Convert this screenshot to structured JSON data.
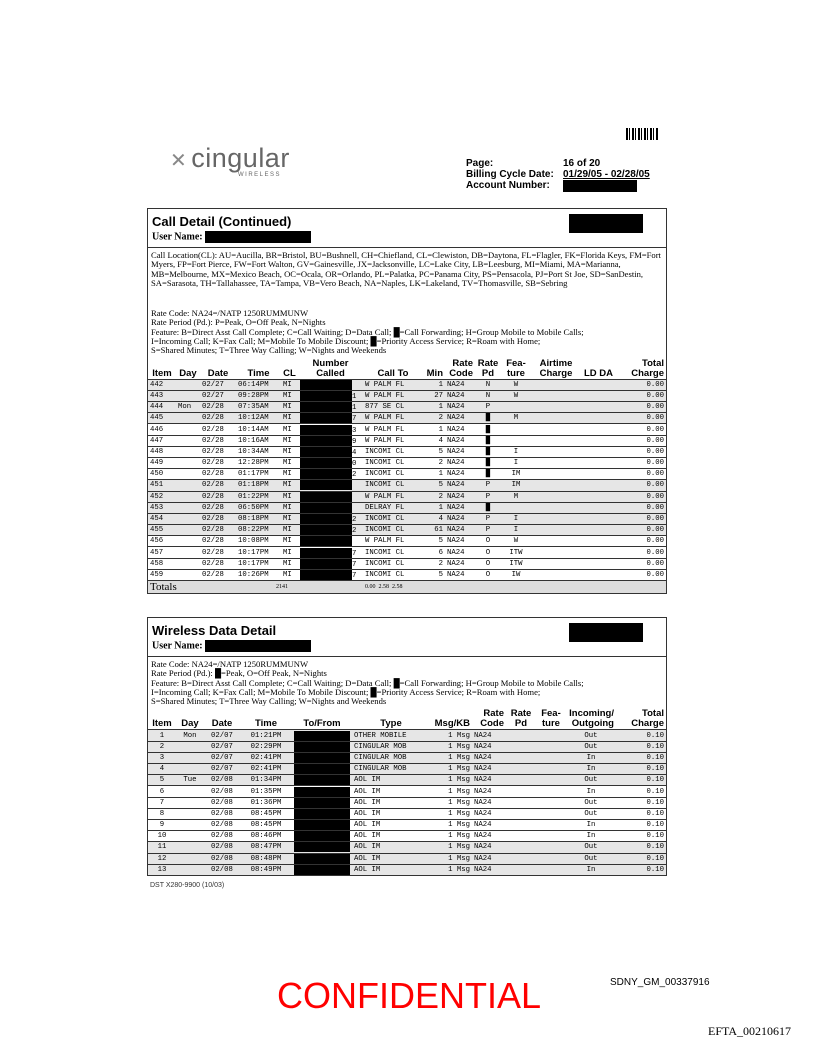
{
  "header": {
    "logo": "cingular",
    "logo_sub": "WIRELESS",
    "page_label": "Page:",
    "page_value": "16 of 20",
    "billing_label": "Billing Cycle Date:",
    "billing_value": "01/29/05 - 02/28/05",
    "account_label": "Account Number:"
  },
  "call_detail": {
    "title": "Call Detail (Continued)",
    "user_label": "User Name:",
    "location_legend": "Call Location(CL): AU=Aucilla, BR=Bristol, BU=Bushnell, CH=Chiefland, CL=Clewiston, DB=Daytona, FL=Flagler, FK=Florida Keys, FM=Fort Myers, FP=Fort Pierce, FW=Fort Walton, GV=Gainesville, JX=Jacksonville, LC=Lake City, LB=Leesburg, MI=Miami, MA=Marianna, MB=Melbourne, MX=Mexico Beach, OC=Ocala, OR=Orlando, PL=Palatka, PC=Panama City, PS=Pensacola, PJ=Port St Joe, SD=SanDestin, SA=Sarasota, TH=Tallahassee, TA=Tampa, VB=Vero Beach, NA=Naples, LK=Lakeland, TV=Thomasville, SB=Sebring",
    "rate_code": "Rate Code: NA24=/NATP 1250RUMMUNW",
    "rate_period": "Rate Period (Pd.): P=Peak, O=Off Peak, N=Nights",
    "feature1": "Feature: B=Direct Asst Call Complete; C=Call Waiting; D=Data Call; █=Call Forwarding; H=Group Mobile to Mobile Calls;",
    "feature2": "I=Incoming Call; K=Fax Call; M=Mobile To Mobile Discount; █=Priority Access Service; R=Roam with Home;",
    "feature3": "S=Shared Minutes;  T=Three Way Calling; W=Nights and Weekends",
    "columns": [
      "Item",
      "Day",
      "Date",
      "Time",
      "CL",
      "Number Called",
      "Call To",
      "Min",
      "Rate Code",
      "Rate Pd",
      "Fea- ture",
      "Airtime Charge",
      "LD DA",
      "Total Charge"
    ],
    "rows": [
      {
        "item": "442",
        "day": "",
        "date": "02/27",
        "time": "06:14PM",
        "cl": "MI",
        "num": "",
        "to": "W PALM FL",
        "min": "1",
        "code": "NA24",
        "pd": "N",
        "feat": "W",
        "total": "0.00",
        "shade": true
      },
      {
        "item": "443",
        "day": "",
        "date": "02/27",
        "time": "09:28PM",
        "cl": "MI",
        "num": "1",
        "to": "W PALM FL",
        "min": "27",
        "code": "NA24",
        "pd": "N",
        "feat": "W",
        "total": "0.00",
        "shade": true
      },
      {
        "item": "444",
        "day": "Mon",
        "date": "02/28",
        "time": "07:35AM",
        "cl": "MI",
        "num": "1",
        "to": "877 SE CL",
        "min": "1",
        "code": "NA24",
        "pd": "P",
        "feat": "",
        "total": "0.00",
        "shade": true
      },
      {
        "item": "445",
        "day": "",
        "date": "02/28",
        "time": "10:12AM",
        "cl": "MI",
        "num": "7",
        "to": "W PALM FL",
        "min": "2",
        "code": "NA24",
        "pd": "█",
        "feat": "M",
        "total": "0.00",
        "shade": true
      },
      {
        "item": "446",
        "day": "",
        "date": "02/28",
        "time": "10:14AM",
        "cl": "MI",
        "num": "3",
        "to": "W PALM FL",
        "min": "1",
        "code": "NA24",
        "pd": "█",
        "feat": "",
        "total": "0.00",
        "shade": false
      },
      {
        "item": "447",
        "day": "",
        "date": "02/28",
        "time": "10:16AM",
        "cl": "MI",
        "num": "9",
        "to": "W PALM FL",
        "min": "4",
        "code": "NA24",
        "pd": "█",
        "feat": "",
        "total": "0.00",
        "shade": false
      },
      {
        "item": "448",
        "day": "",
        "date": "02/28",
        "time": "10:34AM",
        "cl": "MI",
        "num": "4",
        "to": "INCOMI CL",
        "min": "5",
        "code": "NA24",
        "pd": "█",
        "feat": "I",
        "total": "0.00",
        "shade": false
      },
      {
        "item": "449",
        "day": "",
        "date": "02/28",
        "time": "12:28PM",
        "cl": "MI",
        "num": "0",
        "to": "INCOMI CL",
        "min": "2",
        "code": "NA24",
        "pd": "█",
        "feat": "I",
        "total": "0.00",
        "shade": false
      },
      {
        "item": "450",
        "day": "",
        "date": "02/28",
        "time": "01:17PM",
        "cl": "MI",
        "num": "2",
        "to": "INCOMI CL",
        "min": "1",
        "code": "NA24",
        "pd": "█",
        "feat": "IM",
        "total": "0.00",
        "shade": false
      },
      {
        "item": "451",
        "day": "",
        "date": "02/28",
        "time": "01:18PM",
        "cl": "MI",
        "num": "",
        "to": "INCOMI CL",
        "min": "5",
        "code": "NA24",
        "pd": "P",
        "feat": "IM",
        "total": "0.00",
        "shade": true
      },
      {
        "item": "452",
        "day": "",
        "date": "02/28",
        "time": "01:22PM",
        "cl": "MI",
        "num": "",
        "to": "W PALM FL",
        "min": "2",
        "code": "NA24",
        "pd": "P",
        "feat": "M",
        "total": "0.00",
        "shade": true
      },
      {
        "item": "453",
        "day": "",
        "date": "02/28",
        "time": "06:50PM",
        "cl": "MI",
        "num": "",
        "to": "DELRAY FL",
        "min": "1",
        "code": "NA24",
        "pd": "█",
        "feat": "",
        "total": "0.00",
        "shade": true
      },
      {
        "item": "454",
        "day": "",
        "date": "02/28",
        "time": "08:18PM",
        "cl": "MI",
        "num": "2",
        "to": "INCOMI CL",
        "min": "4",
        "code": "NA24",
        "pd": "P",
        "feat": "I",
        "total": "0.00",
        "shade": true
      },
      {
        "item": "455",
        "day": "",
        "date": "02/28",
        "time": "08:22PM",
        "cl": "MI",
        "num": "2",
        "to": "INCOMI CL",
        "min": "61",
        "code": "NA24",
        "pd": "P",
        "feat": "I",
        "total": "0.00",
        "shade": true
      },
      {
        "item": "456",
        "day": "",
        "date": "02/28",
        "time": "10:08PM",
        "cl": "MI",
        "num": "",
        "to": "W PALM FL",
        "min": "5",
        "code": "NA24",
        "pd": "O",
        "feat": "W",
        "total": "0.00",
        "shade": false
      },
      {
        "item": "457",
        "day": "",
        "date": "02/28",
        "time": "10:17PM",
        "cl": "MI",
        "num": "7",
        "to": "INCOMI CL",
        "min": "6",
        "code": "NA24",
        "pd": "O",
        "feat": "ITW",
        "total": "0.00",
        "shade": false
      },
      {
        "item": "458",
        "day": "",
        "date": "02/28",
        "time": "10:17PM",
        "cl": "MI",
        "num": "7",
        "to": "INCOMI CL",
        "min": "2",
        "code": "NA24",
        "pd": "O",
        "feat": "ITW",
        "total": "0.00",
        "shade": false
      },
      {
        "item": "459",
        "day": "",
        "date": "02/28",
        "time": "10:26PM",
        "cl": "MI",
        "num": "7",
        "to": "INCOMI CL",
        "min": "5",
        "code": "NA24",
        "pd": "O",
        "feat": "IW",
        "total": "0.00",
        "shade": false
      }
    ],
    "totals": {
      "label": "Totals",
      "min": "2141",
      "values": "0.00  2.58  2.58"
    }
  },
  "data_detail": {
    "title": "Wireless Data Detail",
    "user_label": "User Name:",
    "rate_code": "Rate Code: NA24=/NATP 1250RUMMUNW",
    "rate_period": "Rate Period (Pd.): █=Peak, O=Off Peak, N=Nights",
    "feature1": "Feature: B=Direct Asst Call Complete; C=Call Waiting; D=Data Call; █=Call Forwarding; H=Group Mobile to Mobile Calls;",
    "feature2": "I=Incoming Call; K=Fax Call; M=Mobile To Mobile Discount; █=Priority Access Service; R=Roam with Home;",
    "feature3": "S=Shared Minutes;  T=Three Way Calling; W=Nights and Weekends",
    "columns": [
      "Item",
      "Day",
      "Date",
      "Time",
      "To/From",
      "Type",
      "Msg/KB",
      "Rate Code",
      "Rate Pd",
      "Fea- ture",
      "Incoming/ Outgoing",
      "Total Charge"
    ],
    "rows": [
      {
        "item": "1",
        "day": "Mon",
        "date": "02/07",
        "time": "01:21PM",
        "type": "OTHER MOBILE",
        "msg": "1 Msg",
        "code": "NA24",
        "io": "Out",
        "total": "0.10",
        "shade": true
      },
      {
        "item": "2",
        "day": "",
        "date": "02/07",
        "time": "02:29PM",
        "type": "CINGULAR MOB",
        "msg": "1 Msg",
        "code": "NA24",
        "io": "Out",
        "total": "0.10",
        "shade": true
      },
      {
        "item": "3",
        "day": "",
        "date": "02/07",
        "time": "02:41PM",
        "type": "CINGULAR MOB",
        "msg": "1 Msg",
        "code": "NA24",
        "io": "In",
        "total": "0.10",
        "shade": true
      },
      {
        "item": "4",
        "day": "",
        "date": "02/07",
        "time": "02:41PM",
        "type": "CINGULAR MOB",
        "msg": "1 Msg",
        "code": "NA24",
        "io": "In",
        "total": "0.10",
        "shade": true
      },
      {
        "item": "5",
        "day": "Tue",
        "date": "02/08",
        "time": "01:34PM",
        "type": "AOL IM",
        "msg": "1 Msg",
        "code": "NA24",
        "io": "Out",
        "total": "0.10",
        "shade": true
      },
      {
        "item": "6",
        "day": "",
        "date": "02/08",
        "time": "01:35PM",
        "type": "AOL IM",
        "msg": "1 Msg",
        "code": "NA24",
        "io": "In",
        "total": "0.10",
        "shade": false
      },
      {
        "item": "7",
        "day": "",
        "date": "02/08",
        "time": "01:36PM",
        "type": "AOL IM",
        "msg": "1 Msg",
        "code": "NA24",
        "io": "Out",
        "total": "0.10",
        "shade": false
      },
      {
        "item": "8",
        "day": "",
        "date": "02/08",
        "time": "08:45PM",
        "type": "AOL IM",
        "msg": "1 Msg",
        "code": "NA24",
        "io": "Out",
        "total": "0.10",
        "shade": false
      },
      {
        "item": "9",
        "day": "",
        "date": "02/08",
        "time": "08:45PM",
        "type": "AOL IM",
        "msg": "1 Msg",
        "code": "NA24",
        "io": "In",
        "total": "0.10",
        "shade": false
      },
      {
        "item": "10",
        "day": "",
        "date": "02/08",
        "time": "08:46PM",
        "type": "AOL IM",
        "msg": "1 Msg",
        "code": "NA24",
        "io": "In",
        "total": "0.10",
        "shade": false
      },
      {
        "item": "11",
        "day": "",
        "date": "02/08",
        "time": "08:47PM",
        "type": "AOL IM",
        "msg": "1 Msg",
        "code": "NA24",
        "io": "Out",
        "total": "0.10",
        "shade": true
      },
      {
        "item": "12",
        "day": "",
        "date": "02/08",
        "time": "08:48PM",
        "type": "AOL IM",
        "msg": "1 Msg",
        "code": "NA24",
        "io": "Out",
        "total": "0.10",
        "shade": true
      },
      {
        "item": "13",
        "day": "",
        "date": "02/08",
        "time": "08:49PM",
        "type": "AOL IM",
        "msg": "1 Msg",
        "code": "NA24",
        "io": "In",
        "total": "0.10",
        "shade": true
      }
    ]
  },
  "footer": {
    "form_code": "DST X280-9900 (10/03)",
    "confidential": "CONFIDENTIAL",
    "bates": "SDNY_GM_00337916",
    "efta": "EFTA_00210617"
  }
}
